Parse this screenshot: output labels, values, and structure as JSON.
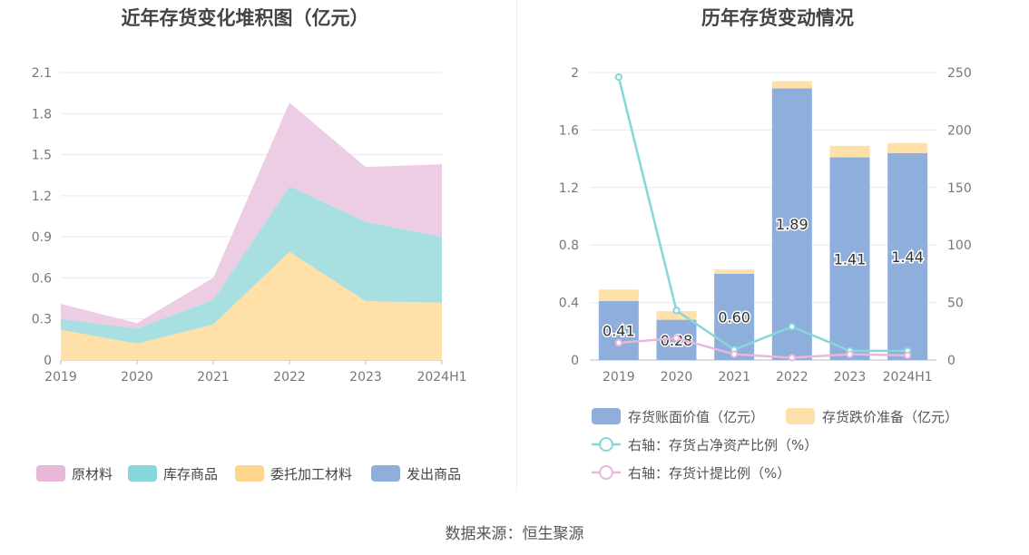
{
  "chart_data": [
    {
      "type": "area",
      "stacked": true,
      "title": "近年存货变化堆积图（亿元）",
      "categories": [
        "2019",
        "2020",
        "2021",
        "2022",
        "2023",
        "2024H1"
      ],
      "ylim": [
        0,
        2.1
      ],
      "yticks": [
        "0",
        "0.3",
        "0.6",
        "0.9",
        "1.2",
        "1.5",
        "1.8",
        "2.1"
      ],
      "grid": true,
      "legend_position": "bottom",
      "series": [
        {
          "name": "发出商品",
          "color": "#8eaedc",
          "values": [
            0.0,
            0.0,
            0.0,
            0.0,
            0.0,
            0.0
          ]
        },
        {
          "name": "委托加工材料",
          "color": "#ffe0a8",
          "values": [
            0.22,
            0.12,
            0.26,
            0.79,
            0.43,
            0.42
          ]
        },
        {
          "name": "库存商品",
          "color": "#a8e0e2",
          "values": [
            0.08,
            0.11,
            0.18,
            0.48,
            0.58,
            0.48
          ]
        },
        {
          "name": "原材料",
          "color": "#edcde4",
          "values": [
            0.11,
            0.04,
            0.16,
            0.61,
            0.4,
            0.53
          ]
        }
      ],
      "legend_order": [
        "原材料",
        "库存商品",
        "委托加工材料",
        "发出商品"
      ],
      "legend_colors": {
        "原材料": "#e8b7da",
        "库存商品": "#86d6da",
        "委托加工材料": "#ffd590",
        "发出商品": "#8eaedc"
      }
    },
    {
      "type": "bar",
      "stacked": true,
      "title": "历年存货变动情况",
      "categories": [
        "2019",
        "2020",
        "2021",
        "2022",
        "2023",
        "2024H1"
      ],
      "ylim": [
        0,
        2
      ],
      "yticks": [
        "0",
        "0.4",
        "0.8",
        "1.2",
        "1.6",
        "2"
      ],
      "y2lim": [
        0,
        250
      ],
      "y2ticks": [
        "0",
        "50",
        "100",
        "150",
        "200",
        "250"
      ],
      "grid": true,
      "legend_position": "bottom",
      "bars": [
        {
          "name": "存货账面价值（亿元）",
          "color": "#8eaedc",
          "values": [
            0.41,
            0.28,
            0.6,
            1.89,
            1.41,
            1.44
          ],
          "labels": [
            "0.41",
            "0.28",
            "0.60",
            "1.89",
            "1.41",
            "1.44"
          ]
        },
        {
          "name": "存货跌价准备（亿元）",
          "color": "#ffe0a8",
          "values": [
            0.08,
            0.06,
            0.03,
            0.05,
            0.08,
            0.07
          ]
        }
      ],
      "lines": [
        {
          "name": "右轴：存货占净资产比例（%）",
          "color": "#86d6da",
          "values": [
            246,
            43,
            9,
            29,
            8,
            8
          ]
        },
        {
          "name": "右轴：存货计提比例（%）",
          "color": "#e8b7da",
          "values": [
            15,
            19,
            5,
            2,
            5,
            4
          ]
        }
      ]
    }
  ],
  "footer": {
    "source": "数据来源：恒生聚源"
  }
}
